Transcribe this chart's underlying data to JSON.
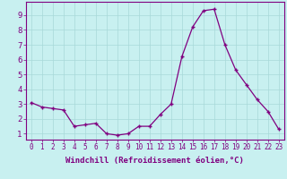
{
  "x": [
    0,
    1,
    2,
    3,
    4,
    5,
    6,
    7,
    8,
    9,
    10,
    11,
    12,
    13,
    14,
    15,
    16,
    17,
    18,
    19,
    20,
    21,
    22,
    23
  ],
  "y": [
    3.1,
    2.8,
    2.7,
    2.6,
    1.5,
    1.6,
    1.7,
    1.0,
    0.9,
    1.0,
    1.5,
    1.5,
    2.3,
    3.0,
    6.2,
    8.2,
    9.3,
    9.4,
    7.0,
    5.3,
    4.3,
    3.3,
    2.5,
    1.3
  ],
  "line_color": "#800080",
  "marker_size": 3,
  "bg_color": "#c8f0f0",
  "grid_color": "#a8d8d8",
  "axis_color": "#800080",
  "tick_color": "#800080",
  "xlabel": "Windchill (Refroidissement éolien,°C)",
  "xlabel_fontsize": 6.5,
  "ytick_fontsize": 6.5,
  "xtick_fontsize": 5.5,
  "ylabel_ticks": [
    1,
    2,
    3,
    4,
    5,
    6,
    7,
    8,
    9
  ],
  "xticks": [
    0,
    1,
    2,
    3,
    4,
    5,
    6,
    7,
    8,
    9,
    10,
    11,
    12,
    13,
    14,
    15,
    16,
    17,
    18,
    19,
    20,
    21,
    22,
    23
  ],
  "ylim": [
    0.6,
    9.9
  ],
  "xlim": [
    -0.5,
    23.5
  ]
}
